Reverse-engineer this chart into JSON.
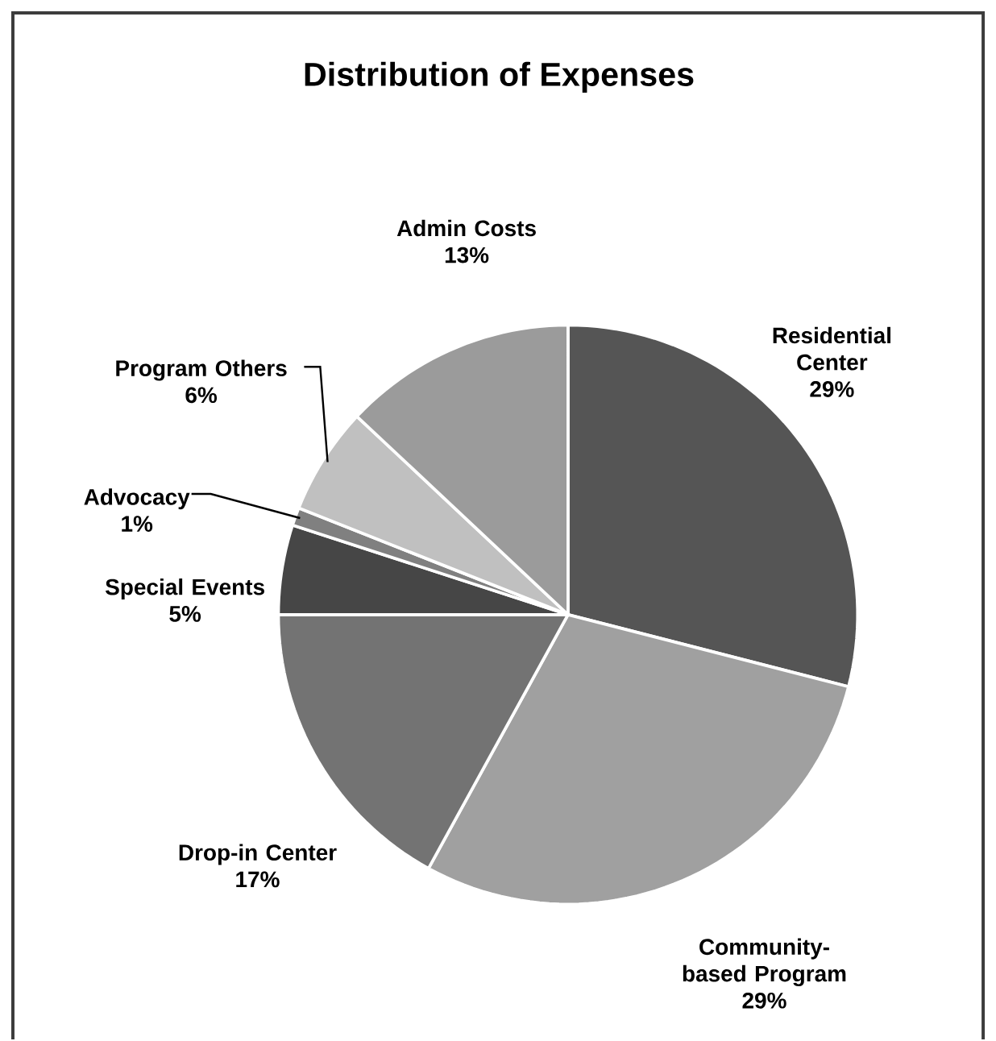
{
  "chart_data": {
    "type": "pie",
    "title": "Distribution of Expenses",
    "categories": [
      "Residential Center",
      "Community-based Program",
      "Drop-in Center",
      "Special Events",
      "Advocacy",
      "Program Others",
      "Admin Costs"
    ],
    "values": [
      29,
      29,
      17,
      5,
      1,
      6,
      13
    ],
    "value_labels": [
      "29%",
      "29%",
      "17%",
      "5%",
      "1%",
      "6%",
      "13%"
    ],
    "colors": [
      "#555555",
      "#a0a0a0",
      "#737373",
      "#464646",
      "#808080",
      "#c0c0c0",
      "#9b9b9b"
    ]
  }
}
